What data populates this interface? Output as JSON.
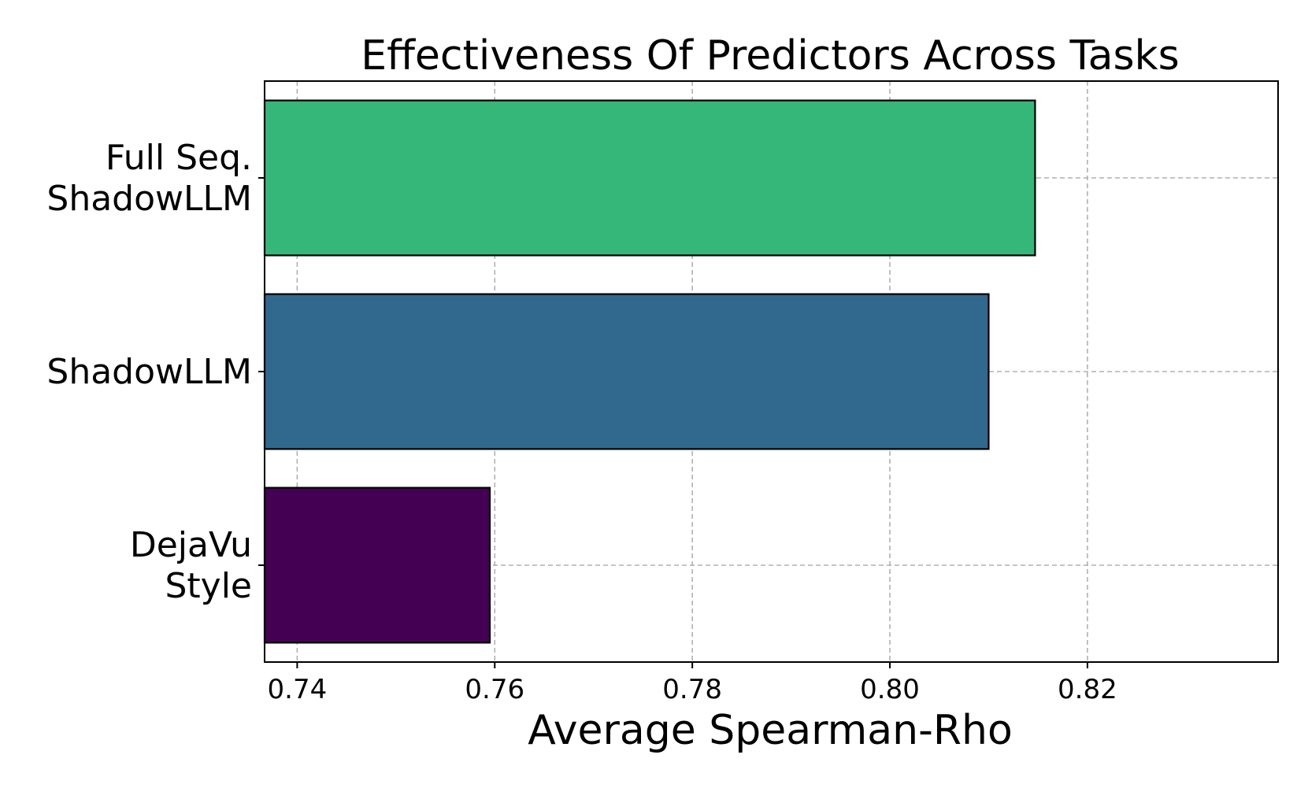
{
  "chart_data": {
    "type": "bar",
    "orientation": "horizontal",
    "title": "Effectiveness Of Predictors Across Tasks",
    "xlabel": "Average Spearman-Rho",
    "ylabel": "",
    "categories": [
      [
        "DejaVu",
        "Style"
      ],
      [
        "ShadowLLM"
      ],
      [
        "Full Seq.",
        "ShadowLLM"
      ]
    ],
    "values": [
      0.7595,
      0.81,
      0.8147
    ],
    "colors": [
      "#440154",
      "#31688e",
      "#35b779"
    ],
    "xlim": [
      0.7367,
      0.8393
    ],
    "xticks": [
      "0.74",
      "0.76",
      "0.78",
      "0.80",
      "0.82"
    ],
    "xtick_values": [
      0.74,
      0.76,
      0.78,
      0.8,
      0.82
    ],
    "grid": true
  }
}
